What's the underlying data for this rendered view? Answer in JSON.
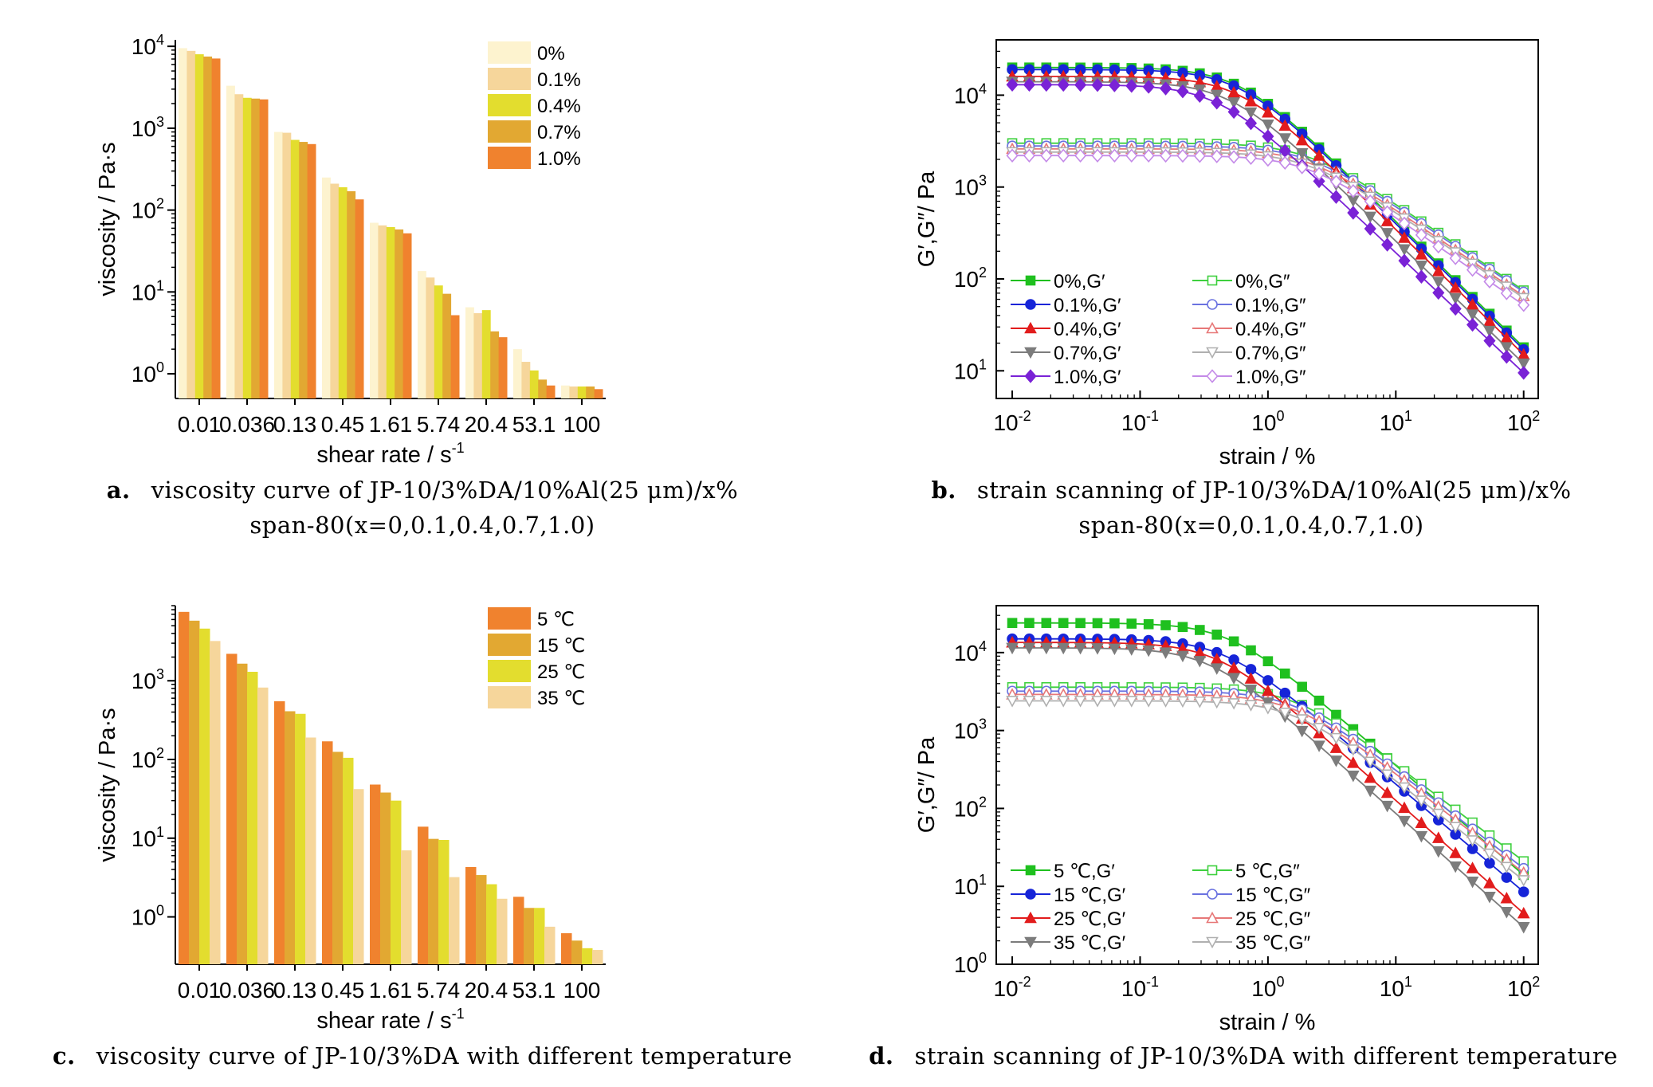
{
  "chart_data": [
    {
      "id": "a",
      "type": "bar",
      "yscale": "log",
      "ylim": [
        0.5,
        12000
      ],
      "yticks": [
        "10^0",
        "10^1",
        "10^2",
        "10^3",
        "10^4"
      ],
      "xlabel": "shear rate / s^-1",
      "ylabel": "viscosity / Pa·s",
      "legend_position": "top-right",
      "categories": [
        "0.01",
        "0.036",
        "0.13",
        "0.45",
        "1.61",
        "5.74",
        "20.4",
        "53.1",
        "100"
      ],
      "series": [
        {
          "name": "0%",
          "color": "#FDF3CF",
          "values": [
            9500,
            3300,
            900,
            250,
            70,
            18,
            6.5,
            2.0,
            0.72
          ]
        },
        {
          "name": "0.1%",
          "color": "#F6D69B",
          "values": [
            8800,
            2600,
            880,
            210,
            65,
            15,
            5.5,
            1.4,
            0.7
          ]
        },
        {
          "name": "0.4%",
          "color": "#E3DD2E",
          "values": [
            8000,
            2350,
            720,
            190,
            62,
            12,
            6.0,
            1.1,
            0.7
          ]
        },
        {
          "name": "0.7%",
          "color": "#E2A832",
          "values": [
            7500,
            2300,
            680,
            170,
            58,
            9.5,
            3.3,
            0.85,
            0.7
          ]
        },
        {
          "name": "1.0%",
          "color": "#F0822E",
          "values": [
            7100,
            2250,
            640,
            135,
            52,
            5.2,
            2.8,
            0.72,
            0.65
          ]
        }
      ],
      "caption_label": "a.",
      "caption_line1": "viscosity curve of JP-10/3%DA/10%Al(25 μm)/x%",
      "caption_line2": "span-80(x=0,0.1,0.4,0.7,1.0)"
    },
    {
      "id": "b",
      "type": "line",
      "xscale": "log",
      "yscale": "log",
      "xlim": [
        0.0075,
        130
      ],
      "ylim": [
        5,
        40000
      ],
      "xticks": [
        "10^-2",
        "10^-1",
        "10^0",
        "10^1",
        "10^2"
      ],
      "yticks": [
        "10^1",
        "10^2",
        "10^3",
        "10^4"
      ],
      "xlabel": "strain / %",
      "ylabel": "G′,G″/ Pa",
      "legend_position": "bottom-left",
      "series": [
        {
          "name": "0%,G′",
          "color": "#1FC01F",
          "filled": true,
          "marker": "square",
          "plateau": 20000,
          "knee": 0.6,
          "slope": 1.45,
          "end": 18
        },
        {
          "name": "0%,G″",
          "color": "#3ED03E",
          "filled": false,
          "marker": "square",
          "plateau": 3000,
          "knee": 2.0,
          "slope": 0.95,
          "end": 75
        },
        {
          "name": "0.1%,G′",
          "color": "#1624D8",
          "filled": true,
          "marker": "circle",
          "plateau": 19000,
          "knee": 0.6,
          "slope": 1.45,
          "end": 17
        },
        {
          "name": "0.1%,G″",
          "color": "#6A72E0",
          "filled": false,
          "marker": "circle",
          "plateau": 2800,
          "knee": 2.0,
          "slope": 0.95,
          "end": 72
        },
        {
          "name": "0.4%,G′",
          "color": "#E21C1C",
          "filled": true,
          "marker": "triangle",
          "plateau": 16000,
          "knee": 0.6,
          "slope": 1.45,
          "end": 15
        },
        {
          "name": "0.4%,G″",
          "color": "#E77878",
          "filled": false,
          "marker": "triangle",
          "plateau": 2600,
          "knee": 2.0,
          "slope": 0.95,
          "end": 65
        },
        {
          "name": "0.7%,G′",
          "color": "#7C7C7C",
          "filled": true,
          "marker": "tridown",
          "plateau": 14000,
          "knee": 0.5,
          "slope": 1.5,
          "end": 12
        },
        {
          "name": "0.7%,G″",
          "color": "#B0B0B0",
          "filled": false,
          "marker": "tridown",
          "plateau": 2400,
          "knee": 2.0,
          "slope": 0.95,
          "end": 62
        },
        {
          "name": "1.0%,G′",
          "color": "#7A22D6",
          "filled": true,
          "marker": "diamond",
          "plateau": 13000,
          "knee": 0.4,
          "slope": 1.55,
          "end": 9.5
        },
        {
          "name": "1.0%,G″",
          "color": "#C48AE8",
          "filled": false,
          "marker": "diamond",
          "plateau": 2200,
          "knee": 2.0,
          "slope": 0.95,
          "end": 52
        }
      ],
      "caption_label": "b.",
      "caption_line1": "strain scanning of JP-10/3%DA/10%Al(25 μm)/x%",
      "caption_line2": "span-80(x=0,0.1,0.4,0.7,1.0)"
    },
    {
      "id": "c",
      "type": "bar",
      "yscale": "log",
      "ylim": [
        0.25,
        9000
      ],
      "yticks": [
        "10^0",
        "10^1",
        "10^2",
        "10^3"
      ],
      "xlabel": "shear rate / s^-1",
      "ylabel": "viscosity / Pa·s",
      "legend_position": "top-right",
      "categories": [
        "0.01",
        "0.036",
        "0.13",
        "0.45",
        "1.61",
        "5.74",
        "20.4",
        "53.1",
        "100"
      ],
      "series": [
        {
          "name": "5 ℃",
          "color": "#F0822E",
          "values": [
            7500,
            2200,
            550,
            170,
            48,
            14,
            4.3,
            1.8,
            0.62
          ]
        },
        {
          "name": "15 ℃",
          "color": "#E2A832",
          "values": [
            5800,
            1650,
            410,
            125,
            38,
            9.8,
            3.4,
            1.3,
            0.5
          ]
        },
        {
          "name": "25 ℃",
          "color": "#E3DD2E",
          "values": [
            4600,
            1300,
            380,
            105,
            30,
            9.5,
            2.6,
            1.3,
            0.4
          ]
        },
        {
          "name": "35 ℃",
          "color": "#F6D69B",
          "values": [
            3200,
            820,
            190,
            42,
            7,
            3.2,
            1.7,
            0.75,
            0.38
          ]
        }
      ],
      "caption_label": "c.",
      "caption_line1": "viscosity curve of JP-10/3%DA with different temperature",
      "caption_line2": ""
    },
    {
      "id": "d",
      "type": "line",
      "xscale": "log",
      "yscale": "log",
      "xlim": [
        0.0075,
        130
      ],
      "ylim": [
        1,
        40000
      ],
      "xticks": [
        "10^-2",
        "10^-1",
        "10^0",
        "10^1",
        "10^2"
      ],
      "yticks": [
        "10^0",
        "10^1",
        "10^2",
        "10^3",
        "10^4"
      ],
      "xlabel": "strain / %",
      "ylabel": "G′,G″/ Pa",
      "legend_position": "bottom-left",
      "series": [
        {
          "name": "5 ℃,G′",
          "color": "#1FC01F",
          "filled": true,
          "marker": "square",
          "plateau": 24000,
          "knee": 0.5,
          "slope": 1.3,
          "end": 14
        },
        {
          "name": "5 ℃,G″",
          "color": "#3ED03E",
          "filled": false,
          "marker": "square",
          "plateau": 3600,
          "knee": 1.6,
          "slope": 1.0,
          "end": 21
        },
        {
          "name": "15 ℃,G′",
          "color": "#1624D8",
          "filled": true,
          "marker": "circle",
          "plateau": 15000,
          "knee": 0.45,
          "slope": 1.35,
          "end": 8.5
        },
        {
          "name": "15 ℃,G″",
          "color": "#6A72E0",
          "filled": false,
          "marker": "circle",
          "plateau": 3200,
          "knee": 1.6,
          "slope": 1.0,
          "end": 17
        },
        {
          "name": "25 ℃,G′",
          "color": "#E21C1C",
          "filled": true,
          "marker": "triangle",
          "plateau": 13500,
          "knee": 0.4,
          "slope": 1.45,
          "end": 4.5
        },
        {
          "name": "25 ℃,G″",
          "color": "#E77878",
          "filled": false,
          "marker": "triangle",
          "plateau": 2900,
          "knee": 1.6,
          "slope": 1.0,
          "end": 15
        },
        {
          "name": "35 ℃,G′",
          "color": "#7C7C7C",
          "filled": true,
          "marker": "tridown",
          "plateau": 11500,
          "knee": 0.35,
          "slope": 1.55,
          "end": 3.0
        },
        {
          "name": "35 ℃,G″",
          "color": "#B0B0B0",
          "filled": false,
          "marker": "tridown",
          "plateau": 2400,
          "knee": 1.6,
          "slope": 1.0,
          "end": 12
        }
      ],
      "caption_label": "d.",
      "caption_line1": "strain scanning of JP-10/3%DA with different temperature",
      "caption_line2": ""
    }
  ]
}
